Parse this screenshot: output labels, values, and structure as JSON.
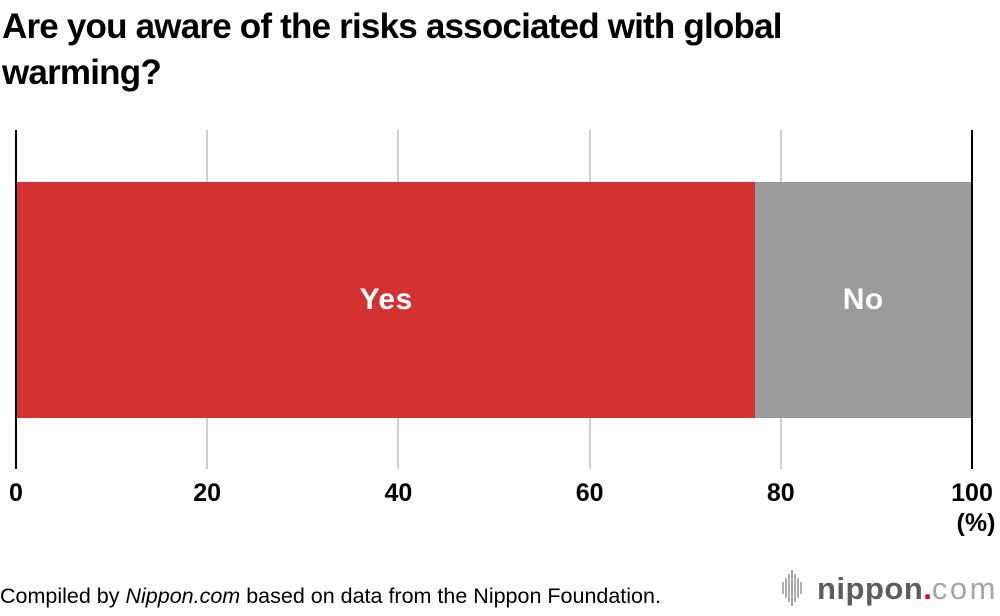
{
  "title": "Are you aware of the risks associated with global warming?",
  "chart_data": {
    "type": "bar",
    "orientation": "horizontal-stacked",
    "title": "Are you aware of the risks associated with global warming?",
    "categories": [
      "Yes",
      "No"
    ],
    "values": [
      77.4,
      22.6
    ],
    "series_colors": [
      "#d23230",
      "#9b9b9b"
    ],
    "bar_label_color": "#ffffff",
    "xlim": [
      0,
      100
    ],
    "ticks": [
      0,
      20,
      40,
      60,
      80,
      100
    ],
    "unit_label": "(%)",
    "grid": true,
    "gridline_color": "#cfcfcf",
    "axis_edge_color": "#000000",
    "legend": "none (labels inside bar segments)"
  },
  "footer": {
    "credit_prefix": "Compiled by ",
    "credit_source": "Nippon.com",
    "credit_suffix": " based on data from the Nippon Foundation.",
    "logo": {
      "icon": "soundwave-icon",
      "wordmark": "nippon",
      "dot": ".",
      "tld": "com",
      "dot_color": "#e60012"
    }
  }
}
